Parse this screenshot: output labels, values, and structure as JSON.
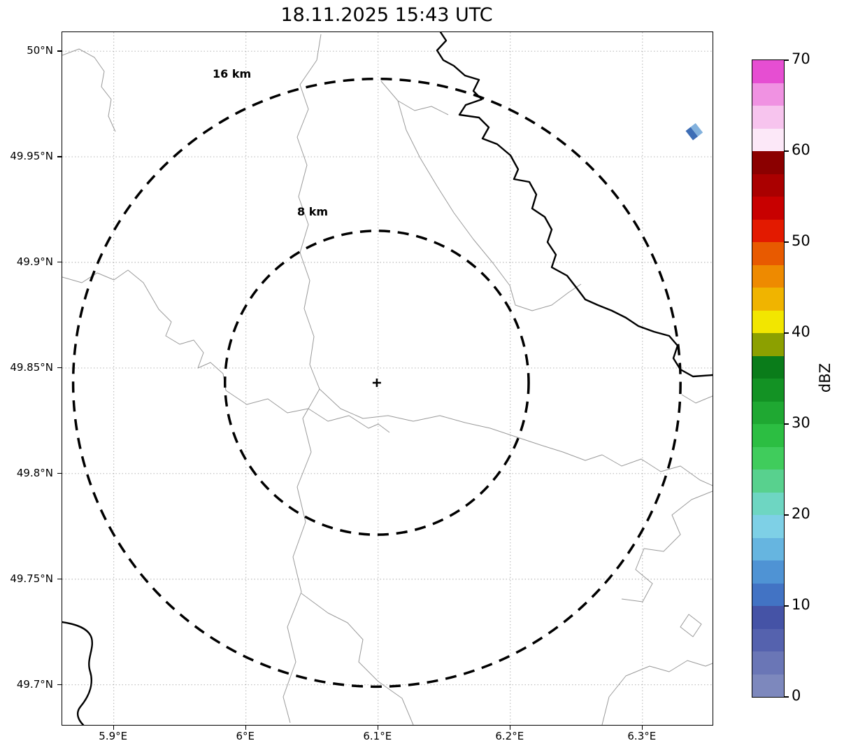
{
  "chart_data": {
    "type": "heatmap",
    "title": "18.11.2025 15:43 UTC",
    "description": "Weather radar reflectivity map with range rings over lat/lon grid",
    "x_axis": {
      "ticks": [
        "5.9°E",
        "6°E",
        "6.1°E",
        "6.2°E",
        "6.3°E"
      ],
      "tick_values": [
        5.9,
        6.0,
        6.1,
        6.2,
        6.3
      ],
      "range": [
        5.861,
        6.353
      ]
    },
    "y_axis": {
      "ticks": [
        "50°N",
        "49.95°N",
        "49.9°N",
        "49.85°N",
        "49.8°N",
        "49.75°N",
        "49.7°N"
      ],
      "tick_values": [
        50.0,
        49.95,
        49.9,
        49.85,
        49.8,
        49.75,
        49.7
      ],
      "range": [
        49.681,
        50.009
      ]
    },
    "grid": true,
    "radar_center": {
      "lon": 6.099,
      "lat": 49.843,
      "marker": "+"
    },
    "range_rings": [
      {
        "label": "8 km",
        "radius_km": 8
      },
      {
        "label": "16 km",
        "radius_km": 16
      }
    ],
    "echoes": [
      {
        "lon": 6.339,
        "lat": 49.962,
        "approx_dbz": [
          12,
          8
        ],
        "colors": [
          "#3d6db5",
          "#82b1dd"
        ],
        "rotation_deg": -38
      }
    ],
    "colorbar": {
      "label": "dBZ",
      "ticks": [
        0,
        10,
        20,
        30,
        40,
        50,
        60,
        70
      ],
      "range": [
        0,
        70
      ],
      "colors": [
        "#7d88bd",
        "#6a76b6",
        "#5562ae",
        "#4553a6",
        "#4273c4",
        "#4f93d4",
        "#66b5e0",
        "#7ed0e6",
        "#6ed6c2",
        "#58d18e",
        "#40cc5c",
        "#2cbe42",
        "#1fa832",
        "#139224",
        "#0a7c1a",
        "#8ca000",
        "#f2e600",
        "#f0b400",
        "#ee8a00",
        "#e85a00",
        "#e31a00",
        "#c80000",
        "#aa0000",
        "#8b0000",
        "#fce8f8",
        "#f7c4ee",
        "#f092e2",
        "#e64ed2"
      ]
    }
  }
}
